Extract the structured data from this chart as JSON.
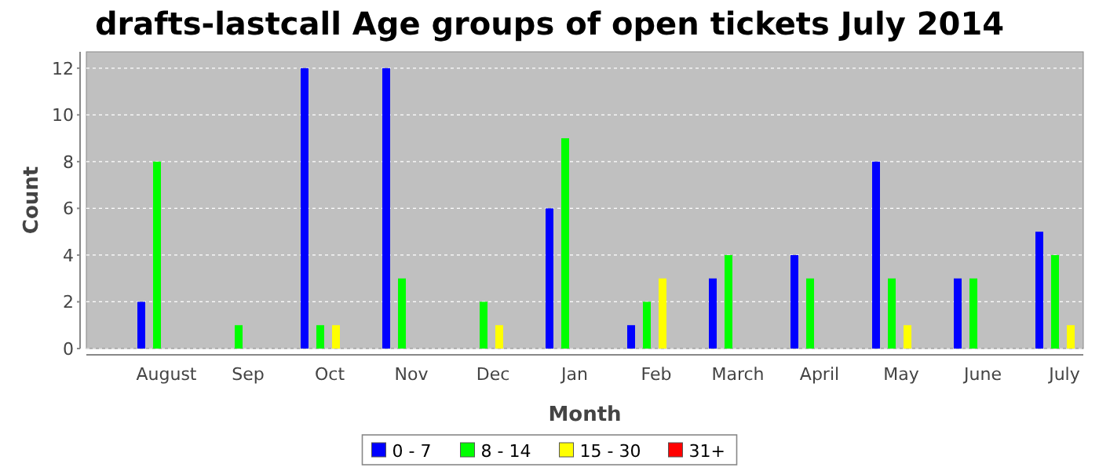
{
  "chart_data": {
    "type": "bar",
    "title": "drafts-lastcall Age groups of open tickets July 2014",
    "xlabel": "Month",
    "ylabel": "Count",
    "categories": [
      "August",
      "Sep",
      "Oct",
      "Nov",
      "Dec",
      "Jan",
      "Feb",
      "March",
      "April",
      "May",
      "June",
      "July"
    ],
    "series": [
      {
        "name": "0 - 7",
        "color": "#0000ff",
        "values": [
          2,
          0,
          12,
          12,
          0,
          6,
          1,
          3,
          4,
          8,
          3,
          5
        ]
      },
      {
        "name": "8 - 14",
        "color": "#00ff00",
        "values": [
          8,
          1,
          1,
          3,
          2,
          9,
          2,
          4,
          3,
          3,
          3,
          4
        ]
      },
      {
        "name": "15 - 30",
        "color": "#ffff00",
        "values": [
          0,
          0,
          1,
          0,
          1,
          0,
          3,
          0,
          0,
          1,
          0,
          1
        ]
      },
      {
        "name": "31+",
        "color": "#ff0000",
        "values": [
          0,
          0,
          0,
          0,
          0,
          0,
          0,
          0,
          0,
          0,
          0,
          0
        ]
      }
    ],
    "ylim": [
      0,
      12.7
    ],
    "yticks": [
      0,
      2,
      4,
      6,
      8,
      10,
      12
    ],
    "grid": "y",
    "legend": "bottom"
  }
}
